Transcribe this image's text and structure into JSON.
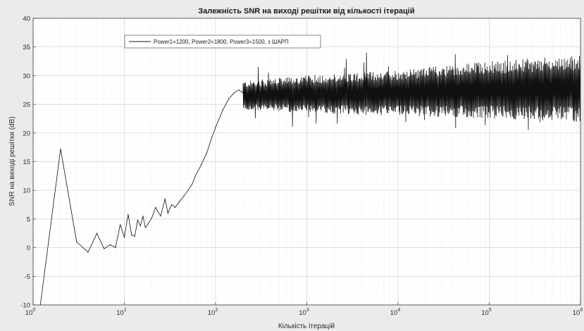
{
  "chart_data": {
    "type": "line",
    "title": "Залежність SNR на виході решітки від кількості ітерацій",
    "xlabel": "Кількість ітерацій",
    "ylabel": "SNR на виході решітки (dB)",
    "xscale": "log",
    "xlim": [
      1,
      1000000
    ],
    "ylim": [
      -10,
      40
    ],
    "x_ticks": [
      {
        "base": "10",
        "exp": "0"
      },
      {
        "base": "10",
        "exp": "1"
      },
      {
        "base": "10",
        "exp": "2"
      },
      {
        "base": "10",
        "exp": "3"
      },
      {
        "base": "10",
        "exp": "4"
      },
      {
        "base": "10",
        "exp": "5"
      },
      {
        "base": "10",
        "exp": "6"
      }
    ],
    "y_ticks": [
      "40",
      "35",
      "30",
      "25",
      "20",
      "15",
      "10",
      "5",
      "0",
      "-5",
      "-10"
    ],
    "grid": true,
    "minor_grid": true,
    "legend_position": "top-left",
    "series": [
      {
        "name": "Power1=1200, Power2=1800, Power3=1500, з ШАРП",
        "color": "#111111",
        "x": [
          1.2,
          2,
          3,
          4,
          5,
          6,
          7,
          8,
          9,
          10,
          11,
          12,
          13,
          14,
          15,
          16,
          17,
          18,
          20,
          22,
          25,
          28,
          30,
          33,
          36,
          40,
          45,
          50,
          55,
          60,
          70,
          80,
          90,
          100,
          120,
          140,
          160,
          180,
          200
        ],
        "y": [
          -10,
          17.2,
          1,
          -0.8,
          2.5,
          -0.2,
          0.5,
          0,
          4,
          1.8,
          5.8,
          2.2,
          2,
          4.8,
          3.8,
          5.5,
          3.5,
          4,
          5.2,
          7,
          5.5,
          8.5,
          6,
          7.5,
          7,
          8,
          9,
          10,
          11,
          12.5,
          14.5,
          16.5,
          19,
          21,
          24,
          26,
          27,
          27.5,
          27
        ],
        "noise_band": {
          "x": [
            200,
            1000,
            10000,
            100000,
            1000000
          ],
          "upper": [
            29,
            30,
            31,
            32.5,
            33.5
          ],
          "lower": [
            24,
            23.5,
            23,
            22.5,
            22
          ]
        }
      }
    ]
  }
}
